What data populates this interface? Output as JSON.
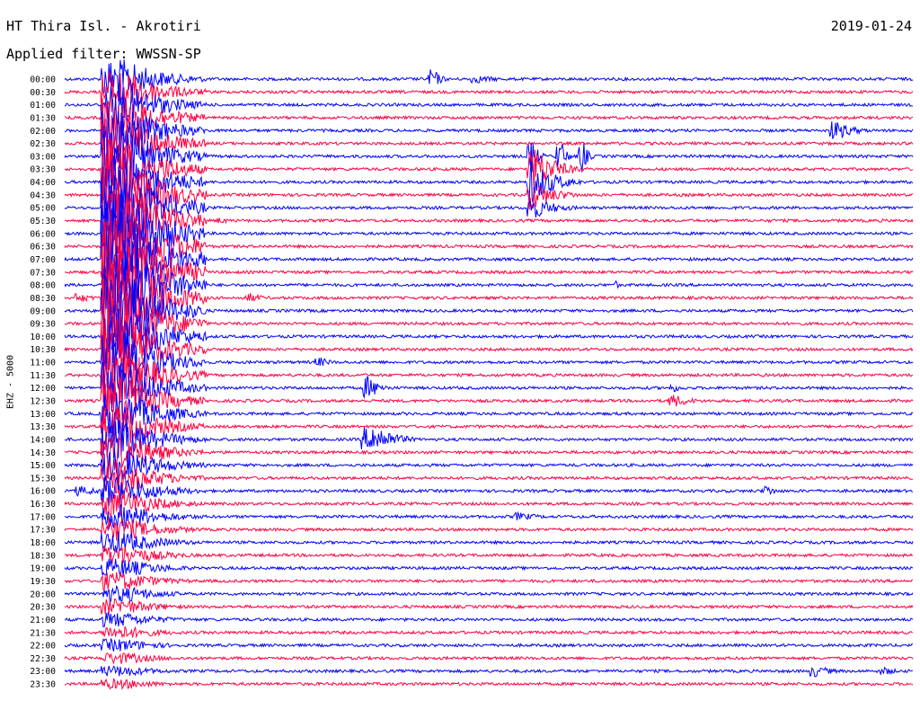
{
  "header": {
    "station": "HT Thira Isl. - Akrotiri",
    "date": "2019-01-24",
    "filter_label": "Applied filter:",
    "filter_value": "WWSSN-SP"
  },
  "channel_label": "EHZ - 5000",
  "colors": {
    "trace_even": "#0000ff",
    "trace_odd": "#ff0040",
    "background": "#ffffff"
  },
  "chart_data": {
    "type": "line",
    "title": "HT Thira Isl. - Akrotiri",
    "subtitle": "Applied filter: WWSSN-SP",
    "ylabel": "EHZ - 5000",
    "xlabel": "",
    "row_labels": [
      "00:00",
      "00:30",
      "01:00",
      "01:30",
      "02:00",
      "02:30",
      "03:00",
      "03:30",
      "04:00",
      "04:30",
      "05:00",
      "05:30",
      "06:00",
      "06:30",
      "07:00",
      "07:30",
      "08:00",
      "08:30",
      "09:00",
      "09:30",
      "10:00",
      "10:30",
      "11:00",
      "11:30",
      "12:00",
      "12:30",
      "13:00",
      "13:30",
      "14:00",
      "14:30",
      "15:00",
      "15:30",
      "16:00",
      "16:30",
      "17:00",
      "17:30",
      "18:00",
      "18:30",
      "19:00",
      "19:30",
      "20:00",
      "20:30",
      "21:00",
      "21:30",
      "22:00",
      "22:30",
      "23:00",
      "23:30"
    ],
    "row_minutes": 30,
    "series_colors": [
      "blue",
      "red"
    ],
    "events": [
      {
        "row": 0,
        "minute": 13.0,
        "amp": 14,
        "dur": 0.6
      },
      {
        "row": 0,
        "minute": 14.5,
        "amp": 5,
        "dur": 2.0
      },
      {
        "row": 4,
        "minute": 27.2,
        "amp": 12,
        "dur": 1.5
      },
      {
        "row": 6,
        "minute": 16.5,
        "amp": 22,
        "dur": 0.5
      },
      {
        "row": 6,
        "minute": 17.5,
        "amp": 22,
        "dur": 0.5
      },
      {
        "row": 6,
        "minute": 18.3,
        "amp": 22,
        "dur": 0.4
      },
      {
        "row": 7,
        "minute": 16.5,
        "amp": 28,
        "dur": 1.8
      },
      {
        "row": 8,
        "minute": 16.5,
        "amp": 26,
        "dur": 1.8
      },
      {
        "row": 9,
        "minute": 16.5,
        "amp": 18,
        "dur": 1.8
      },
      {
        "row": 10,
        "minute": 16.5,
        "amp": 14,
        "dur": 1.8
      },
      {
        "row": 11,
        "minute": 3.5,
        "amp": 5,
        "dur": 1.2
      },
      {
        "row": 11,
        "minute": 5.5,
        "amp": 4,
        "dur": 0.8
      },
      {
        "row": 16,
        "minute": 19.5,
        "amp": 5,
        "dur": 0.3
      },
      {
        "row": 17,
        "minute": 0.5,
        "amp": 6,
        "dur": 1.2
      },
      {
        "row": 17,
        "minute": 6.5,
        "amp": 6,
        "dur": 1.2
      },
      {
        "row": 22,
        "minute": 9.0,
        "amp": 6,
        "dur": 1.0
      },
      {
        "row": 24,
        "minute": 10.7,
        "amp": 14,
        "dur": 1.0
      },
      {
        "row": 24,
        "minute": 21.5,
        "amp": 5,
        "dur": 1.0
      },
      {
        "row": 25,
        "minute": 21.5,
        "amp": 8,
        "dur": 1.5
      },
      {
        "row": 28,
        "minute": 10.6,
        "amp": 14,
        "dur": 1.0
      },
      {
        "row": 28,
        "minute": 11.0,
        "amp": 18,
        "dur": 1.5
      },
      {
        "row": 32,
        "minute": 0.5,
        "amp": 6,
        "dur": 2.0
      },
      {
        "row": 32,
        "minute": 24.8,
        "amp": 7,
        "dur": 0.8
      },
      {
        "row": 34,
        "minute": 16.0,
        "amp": 5,
        "dur": 2.0
      },
      {
        "row": 46,
        "minute": 26.5,
        "amp": 7,
        "dur": 1.5
      },
      {
        "row": 46,
        "minute": 29.0,
        "amp": 5,
        "dur": 1.0
      }
    ],
    "major_event": {
      "start_row": 0,
      "end_row": 47,
      "minute": 1.5,
      "peak_row": 14,
      "amp": 60,
      "dur": 3.5
    }
  }
}
